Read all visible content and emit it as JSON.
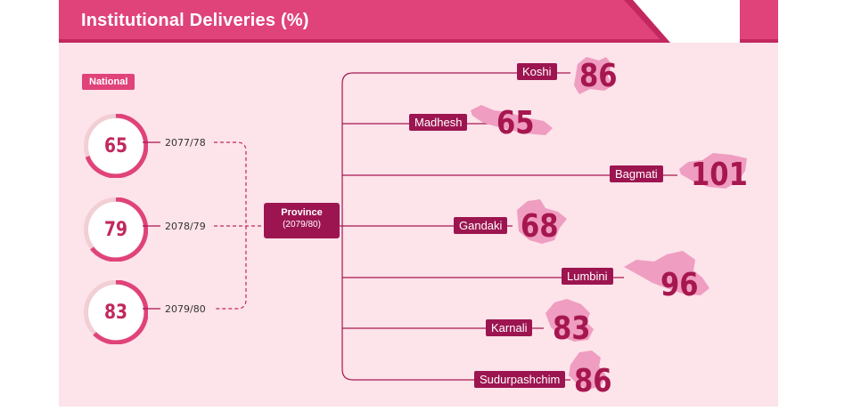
{
  "header": {
    "title": "Institutional Deliveries (%)"
  },
  "colors": {
    "brand": "#e0427a",
    "dark": "#9c1550",
    "value": "#a6174f",
    "panel": "#fde3ea"
  },
  "national": {
    "label": "National",
    "items": [
      {
        "year": "2077/78",
        "value": "65"
      },
      {
        "year": "2078/79",
        "value": "79"
      },
      {
        "year": "2079/80",
        "value": "83"
      }
    ]
  },
  "province_box": {
    "title": "Province",
    "year": "(2079/80)"
  },
  "provinces": [
    {
      "name": "Koshi",
      "value": "86"
    },
    {
      "name": "Madhesh",
      "value": "65"
    },
    {
      "name": "Bagmati",
      "value": "101"
    },
    {
      "name": "Gandaki",
      "value": "68"
    },
    {
      "name": "Lumbini",
      "value": "96"
    },
    {
      "name": "Karnali",
      "value": "83"
    },
    {
      "name": "Sudurpashchim",
      "value": "86"
    }
  ],
  "chart_data": [
    {
      "type": "table",
      "title": "Institutional Deliveries (%)",
      "series": [
        {
          "name": "National",
          "values": [
            65,
            79,
            83
          ]
        }
      ],
      "categories": [
        "2077/78",
        "2078/79",
        "2079/80"
      ]
    },
    {
      "type": "bar",
      "categories": [
        "Koshi",
        "Madhesh",
        "Bagmati",
        "Gandaki",
        "Lumbini",
        "Karnali",
        "Sudurpashchim"
      ],
      "values": [
        86,
        65,
        101,
        68,
        96,
        83,
        86
      ],
      "xlabel": "Province (2079/80)"
    }
  ]
}
